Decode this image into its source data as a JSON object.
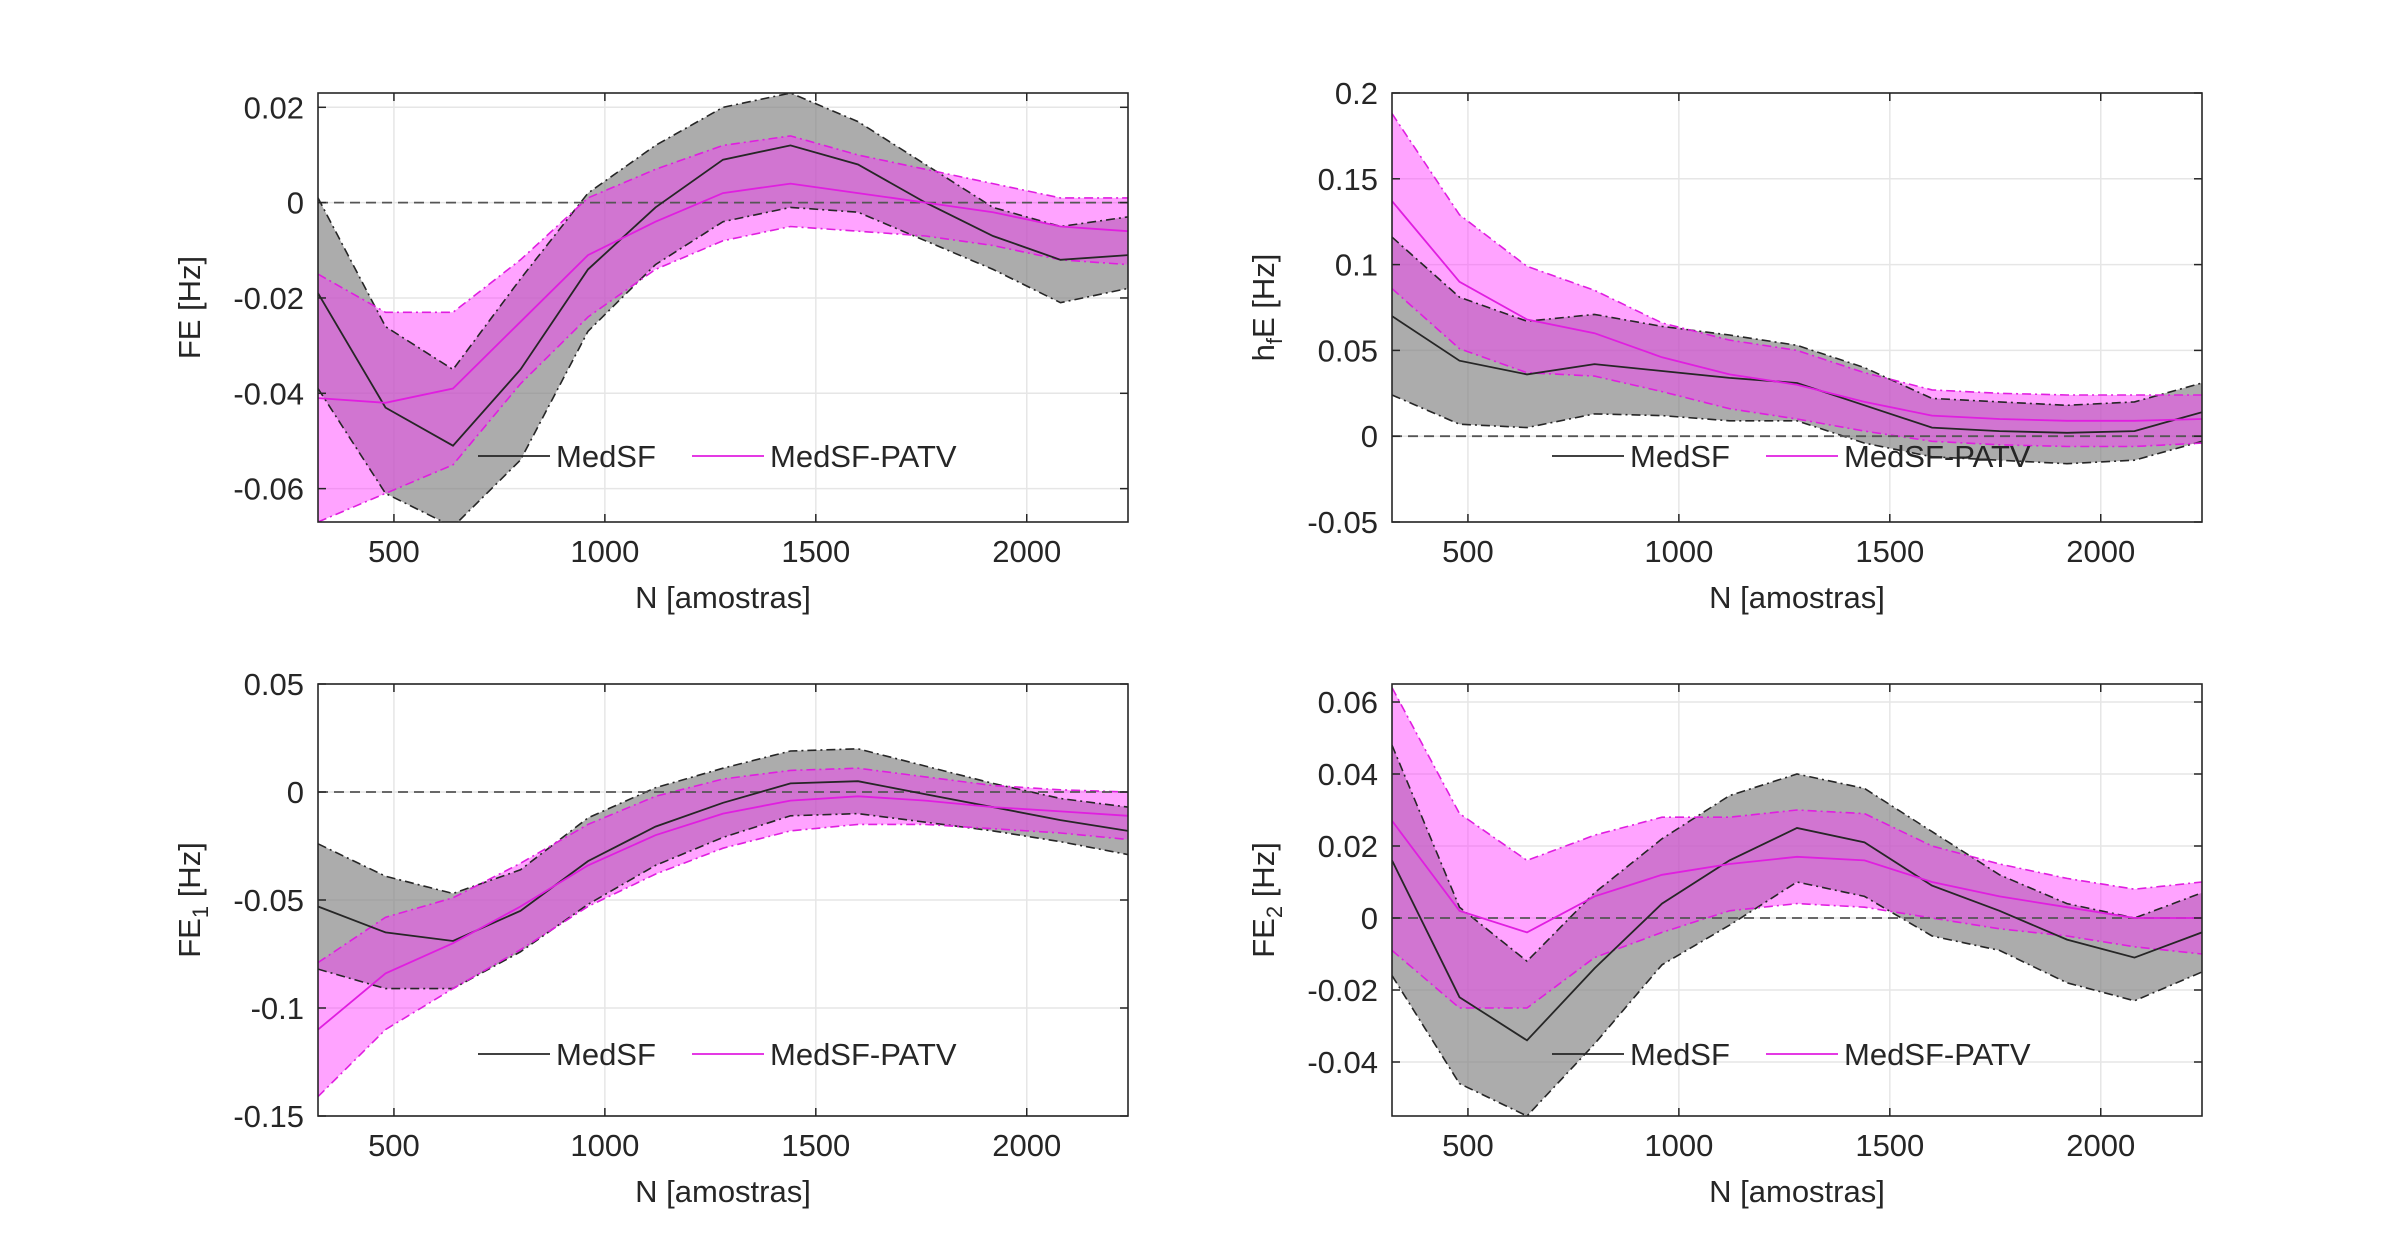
{
  "colors": {
    "medsf_line": "#262626",
    "medsf_band": "#808080",
    "patv_line": "#e01ee0",
    "patv_band": "#ff33ff",
    "frame": "#262626",
    "grid": "#e6e6e6",
    "zero_line": "#555555"
  },
  "chart_data": [
    {
      "type": "line",
      "xlabel": "N [amostras]",
      "ylabel": "FE [Hz]",
      "xlim": [
        320,
        2240
      ],
      "ylim": [
        -0.067,
        0.023
      ],
      "xticks": [
        500,
        1000,
        1500,
        2000
      ],
      "xtick_labels": [
        "500",
        "1000",
        "1500",
        "2000"
      ],
      "yticks": [
        -0.06,
        -0.04,
        -0.02,
        0,
        0.02
      ],
      "ytick_labels": [
        "-0.06",
        "-0.04",
        "-0.02",
        "0",
        "0.02"
      ],
      "grid": true,
      "legend": "bottom-center",
      "x": [
        320,
        480,
        640,
        800,
        960,
        1120,
        1280,
        1440,
        1600,
        1760,
        1920,
        2080,
        2240
      ],
      "series": [
        {
          "name": "MedSF",
          "mean": [
            -0.019,
            -0.043,
            -0.051,
            -0.035,
            -0.014,
            -0.001,
            0.009,
            0.012,
            0.008,
            0.0,
            -0.007,
            -0.012,
            -0.011
          ],
          "upper": [
            0.001,
            -0.026,
            -0.035,
            -0.016,
            0.002,
            0.012,
            0.02,
            0.023,
            0.017,
            0.008,
            -0.001,
            -0.005,
            -0.003
          ],
          "lower": [
            -0.039,
            -0.061,
            -0.068,
            -0.054,
            -0.027,
            -0.013,
            -0.004,
            -0.001,
            -0.002,
            -0.008,
            -0.014,
            -0.021,
            -0.018
          ]
        },
        {
          "name": "MedSF-PATV",
          "mean": [
            -0.041,
            -0.042,
            -0.039,
            -0.025,
            -0.011,
            -0.004,
            0.002,
            0.004,
            0.002,
            0.0,
            -0.002,
            -0.005,
            -0.006
          ],
          "upper": [
            -0.015,
            -0.023,
            -0.023,
            -0.012,
            0.001,
            0.007,
            0.012,
            0.014,
            0.01,
            0.007,
            0.004,
            0.001,
            0.001
          ],
          "lower": [
            -0.067,
            -0.061,
            -0.055,
            -0.038,
            -0.024,
            -0.014,
            -0.008,
            -0.005,
            -0.006,
            -0.007,
            -0.009,
            -0.012,
            -0.013
          ]
        }
      ]
    },
    {
      "type": "line",
      "xlabel": "N [amostras]",
      "ylabel": "hfE [Hz]",
      "xlim": [
        320,
        2240
      ],
      "ylim": [
        -0.05,
        0.2
      ],
      "xticks": [
        500,
        1000,
        1500,
        2000
      ],
      "xtick_labels": [
        "500",
        "1000",
        "1500",
        "2000"
      ],
      "yticks": [
        -0.05,
        0,
        0.05,
        0.1,
        0.15,
        0.2
      ],
      "ytick_labels": [
        "-0.05",
        "0",
        "0.05",
        "0.1",
        "0.15",
        "0.2"
      ],
      "grid": true,
      "legend": "bottom-center",
      "x": [
        320,
        480,
        640,
        800,
        960,
        1120,
        1280,
        1440,
        1600,
        1760,
        1920,
        2080,
        2240
      ],
      "series": [
        {
          "name": "MedSF",
          "mean": [
            0.07,
            0.044,
            0.036,
            0.042,
            0.038,
            0.034,
            0.031,
            0.018,
            0.005,
            0.003,
            0.002,
            0.003,
            0.014
          ],
          "upper": [
            0.116,
            0.081,
            0.067,
            0.071,
            0.064,
            0.059,
            0.053,
            0.04,
            0.022,
            0.02,
            0.018,
            0.02,
            0.031
          ],
          "lower": [
            0.024,
            0.007,
            0.005,
            0.013,
            0.012,
            0.009,
            0.009,
            -0.004,
            -0.012,
            -0.014,
            -0.016,
            -0.014,
            -0.003
          ]
        },
        {
          "name": "MedSF-PATV",
          "mean": [
            0.137,
            0.09,
            0.068,
            0.06,
            0.046,
            0.036,
            0.03,
            0.02,
            0.012,
            0.01,
            0.009,
            0.009,
            0.01
          ],
          "upper": [
            0.188,
            0.129,
            0.099,
            0.085,
            0.066,
            0.056,
            0.05,
            0.037,
            0.027,
            0.025,
            0.024,
            0.024,
            0.024
          ],
          "lower": [
            0.086,
            0.051,
            0.037,
            0.035,
            0.026,
            0.016,
            0.01,
            0.003,
            -0.003,
            -0.005,
            -0.006,
            -0.006,
            -0.004
          ]
        }
      ]
    },
    {
      "type": "line",
      "xlabel": "N [amostras]",
      "ylabel": "FE1 [Hz]",
      "xlim": [
        320,
        2240
      ],
      "ylim": [
        -0.15,
        0.05
      ],
      "xticks": [
        500,
        1000,
        1500,
        2000
      ],
      "xtick_labels": [
        "500",
        "1000",
        "1500",
        "2000"
      ],
      "yticks": [
        -0.15,
        -0.1,
        -0.05,
        0,
        0.05
      ],
      "ytick_labels": [
        "-0.15",
        "-0.1",
        "-0.05",
        "0",
        "0.05"
      ],
      "grid": true,
      "legend": "bottom-center",
      "x": [
        320,
        480,
        640,
        800,
        960,
        1120,
        1280,
        1440,
        1600,
        1760,
        1920,
        2080,
        2240
      ],
      "series": [
        {
          "name": "MedSF",
          "mean": [
            -0.053,
            -0.065,
            -0.069,
            -0.055,
            -0.032,
            -0.016,
            -0.005,
            0.004,
            0.005,
            -0.001,
            -0.007,
            -0.013,
            -0.018
          ],
          "upper": [
            -0.024,
            -0.039,
            -0.047,
            -0.036,
            -0.012,
            0.002,
            0.011,
            0.019,
            0.02,
            0.012,
            0.004,
            -0.003,
            -0.007
          ],
          "lower": [
            -0.082,
            -0.091,
            -0.091,
            -0.074,
            -0.052,
            -0.034,
            -0.021,
            -0.011,
            -0.01,
            -0.014,
            -0.018,
            -0.023,
            -0.029
          ]
        },
        {
          "name": "MedSF-PATV",
          "mean": [
            -0.11,
            -0.084,
            -0.07,
            -0.053,
            -0.034,
            -0.02,
            -0.01,
            -0.004,
            -0.002,
            -0.004,
            -0.007,
            -0.009,
            -0.011
          ],
          "upper": [
            -0.079,
            -0.058,
            -0.049,
            -0.033,
            -0.015,
            -0.002,
            0.006,
            0.01,
            0.011,
            0.007,
            0.003,
            0.001,
            0.0
          ],
          "lower": [
            -0.141,
            -0.11,
            -0.091,
            -0.073,
            -0.053,
            -0.038,
            -0.026,
            -0.018,
            -0.015,
            -0.015,
            -0.017,
            -0.019,
            -0.022
          ]
        }
      ]
    },
    {
      "type": "line",
      "xlabel": "N [amostras]",
      "ylabel": "FE2 [Hz]",
      "xlim": [
        320,
        2240
      ],
      "ylim": [
        -0.055,
        0.065
      ],
      "xticks": [
        500,
        1000,
        1500,
        2000
      ],
      "xtick_labels": [
        "500",
        "1000",
        "1500",
        "2000"
      ],
      "yticks": [
        -0.04,
        -0.02,
        0,
        0.02,
        0.04,
        0.06
      ],
      "ytick_labels": [
        "-0.04",
        "-0.02",
        "0",
        "0.02",
        "0.04",
        "0.06"
      ],
      "grid": true,
      "legend": "bottom-center",
      "x": [
        320,
        480,
        640,
        800,
        960,
        1120,
        1280,
        1440,
        1600,
        1760,
        1920,
        2080,
        2240
      ],
      "series": [
        {
          "name": "MedSF",
          "mean": [
            0.016,
            -0.022,
            -0.034,
            -0.014,
            0.004,
            0.016,
            0.025,
            0.021,
            0.009,
            0.002,
            -0.006,
            -0.011,
            -0.004
          ],
          "upper": [
            0.048,
            0.003,
            -0.012,
            0.007,
            0.022,
            0.034,
            0.04,
            0.036,
            0.024,
            0.012,
            0.004,
            0.0,
            0.007
          ],
          "lower": [
            -0.016,
            -0.046,
            -0.055,
            -0.035,
            -0.013,
            -0.002,
            0.01,
            0.006,
            -0.005,
            -0.009,
            -0.018,
            -0.023,
            -0.015
          ]
        },
        {
          "name": "MedSF-PATV",
          "mean": [
            0.027,
            0.002,
            -0.004,
            0.006,
            0.012,
            0.015,
            0.017,
            0.016,
            0.01,
            0.006,
            0.003,
            0.0,
            0.0
          ],
          "upper": [
            0.064,
            0.029,
            0.016,
            0.023,
            0.028,
            0.028,
            0.03,
            0.029,
            0.02,
            0.015,
            0.011,
            0.008,
            0.01
          ],
          "lower": [
            -0.009,
            -0.025,
            -0.025,
            -0.011,
            -0.004,
            0.002,
            0.004,
            0.003,
            0.0,
            -0.003,
            -0.005,
            -0.008,
            -0.01
          ]
        }
      ]
    }
  ]
}
